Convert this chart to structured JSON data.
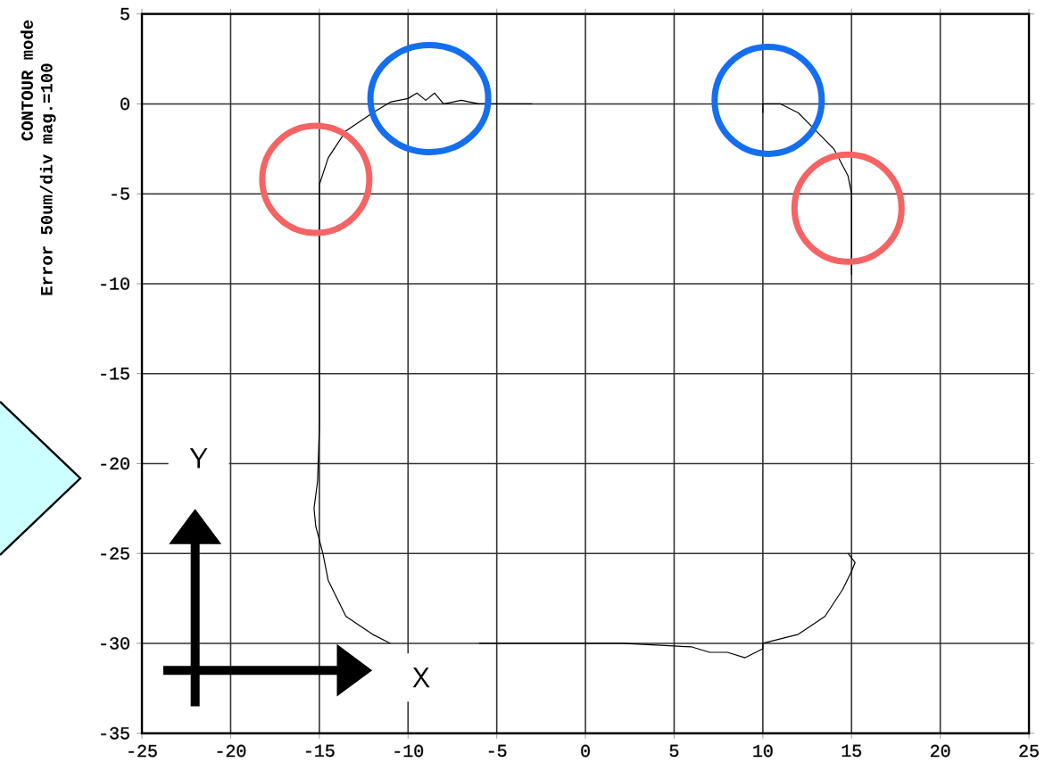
{
  "chart_data": {
    "type": "line",
    "ylabel": "Error 50um/div mag.=100",
    "annotations": [
      "CONTOUR mode",
      "Y",
      "X"
    ],
    "series": [
      {
        "color": "#000000",
        "x": [
          -3,
          -4.5,
          -6,
          -7,
          -8,
          -8.5,
          -9,
          -9.5,
          -10,
          -11,
          -12,
          -13.5,
          -14.5,
          -15,
          -15,
          -15.1,
          -15.3,
          -15.2,
          -14.8,
          -14.5,
          -13.5,
          -12,
          -11,
          null,
          -6,
          2,
          4,
          6,
          7,
          8,
          9,
          10,
          10,
          12,
          13.5,
          14.5,
          15,
          15.2,
          14.8,
          null,
          15,
          15,
          14.8,
          14,
          13,
          12,
          11,
          10,
          10
        ],
        "values": [
          0,
          0,
          0,
          0.2,
          0,
          0.6,
          0.2,
          0.6,
          0.3,
          0.1,
          -0.5,
          -1.5,
          -3,
          -4.5,
          -18,
          -21,
          -22.5,
          -23.5,
          -25,
          -26.5,
          -28.5,
          -29.5,
          -30,
          null,
          -30,
          -30,
          -30.1,
          -30.2,
          -30.5,
          -30.5,
          -30.8,
          -30.3,
          -30,
          -29.5,
          -28.5,
          -27,
          -26,
          -25.5,
          -25,
          null,
          -9.5,
          -5,
          -4,
          -2.5,
          -1.5,
          -0.5,
          0,
          0,
          -0.5
        ]
      }
    ],
    "xlim": [
      -25,
      25
    ],
    "ylim": [
      -35,
      5
    ],
    "xticks": [
      -25,
      -20,
      -15,
      -10,
      -5,
      0,
      5,
      10,
      15,
      20,
      25
    ],
    "yticks": [
      -35,
      -30,
      -25,
      -20,
      -15,
      -10,
      -5,
      0,
      5
    ],
    "grid": true
  }
}
